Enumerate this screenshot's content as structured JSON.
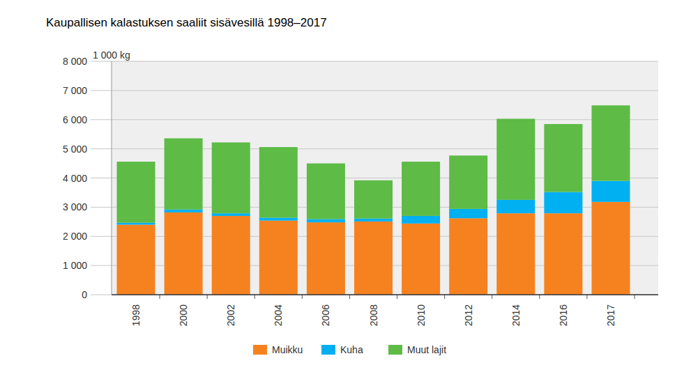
{
  "chart_data": {
    "type": "bar",
    "title": "Kaupallisen kalastuksen saaliit sisävesillä 1998–2017",
    "ylabel": "1 000 kg",
    "categories": [
      "1998",
      "2000",
      "2002",
      "2004",
      "2006",
      "2008",
      "2010",
      "2012",
      "2014",
      "2016",
      "2017"
    ],
    "series": [
      {
        "name": "Muikku",
        "color": "#f5821f",
        "values": [
          2400,
          2820,
          2700,
          2540,
          2480,
          2510,
          2440,
          2620,
          2790,
          2790,
          3180
        ]
      },
      {
        "name": "Kuha",
        "color": "#00b0f0",
        "values": [
          70,
          100,
          90,
          100,
          110,
          100,
          260,
          320,
          460,
          730,
          720
        ]
      },
      {
        "name": "Muut lajit",
        "color": "#5dbb46",
        "values": [
          2090,
          2440,
          2430,
          2420,
          1910,
          1310,
          1860,
          1830,
          2780,
          2330,
          2590
        ]
      }
    ],
    "stacked": true,
    "ylim": [
      0,
      8000
    ],
    "yticks": [
      0,
      {
        "value": 1000,
        "label": "1 000"
      },
      {
        "value": 2000,
        "label": "2 000"
      },
      {
        "value": 3000,
        "label": "3 000"
      },
      {
        "value": 4000,
        "label": "4 000"
      },
      {
        "value": 5000,
        "label": "5 000"
      },
      {
        "value": 6000,
        "label": "6 000"
      },
      {
        "value": 7000,
        "label": "7 000"
      },
      {
        "value": 8000,
        "label": "8 000"
      }
    ],
    "grid": true,
    "legend": "bottom"
  }
}
